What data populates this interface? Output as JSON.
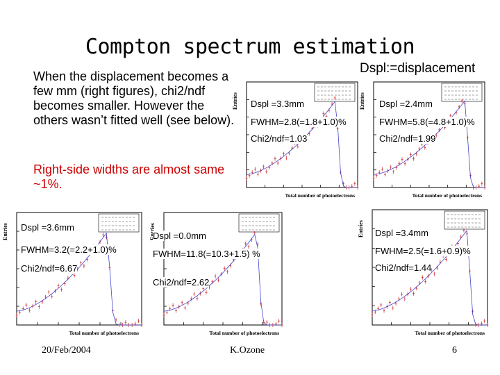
{
  "slide": {
    "title": "Compton spectrum estimation",
    "intro_text": "When the displacement becomes a few mm (right figures), chi2/ndf becomes smaller. However the others wasn’t fitted  well (see below).",
    "right_note": "Right-side widths are almost same ~1%.",
    "dspl_definition": "Dspl:=displacement",
    "footer": {
      "date": "20/Feb/2004",
      "author": "K.Ozone",
      "page": "6"
    }
  },
  "plots": [
    {
      "id": "p1",
      "dspl": "Dspl =3.3mm",
      "fwhm": "FWHM=2.8(=1.8+1.0)%",
      "chi2": "Chi2/ndf=1.03",
      "xlabel": "Total number of photoelectrons",
      "ylabel": "Entries",
      "peak": 0.8
    },
    {
      "id": "p2",
      "dspl": "Dspl =2.4mm",
      "fwhm": "FWHM=5.8(=4.8+1.0)%",
      "chi2": "Chi2/ndf=1.99",
      "xlabel": "Total number of photoelectrons",
      "ylabel": "Entries",
      "peak": 0.82
    },
    {
      "id": "p3",
      "dspl": "Dspl =3.6mm",
      "fwhm": "FWHM=3.2(=2.2+1.0)%",
      "chi2": "Chi2/ndf=6.67",
      "xlabel": "Total number of photoelectrons",
      "ylabel": "Entries",
      "peak": 0.72
    },
    {
      "id": "p4",
      "dspl": "Dspl =0.0mm",
      "fwhm": "FWHM=11.8(=10.3+1.5) %",
      "chi2": "Chi2/ndf=2.62",
      "xlabel": "Total number of photoelectrons",
      "ylabel": "Entries",
      "peak": 0.78
    },
    {
      "id": "p5",
      "dspl": "Dspl =3.4mm",
      "fwhm": "FWHM=2.5(=1.6+0.9)%",
      "chi2": "Chi2/ndf=1.44",
      "xlabel": "Total number of photoelectrons",
      "ylabel": "Entries",
      "peak": 0.82
    }
  ],
  "colors": {
    "accent_red": "#cc0000",
    "hist": "#cc2222",
    "fit": "#4444cc"
  }
}
